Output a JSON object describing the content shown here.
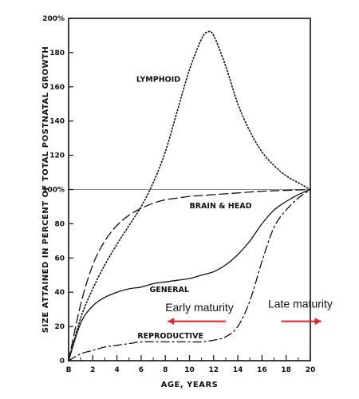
{
  "chart_data": {
    "type": "line",
    "xlabel": "AGE, YEARS",
    "ylabel": "SIZE ATTAINED IN PERCENT OF TOTAL POSTNATAL GROWTH",
    "xlim": [
      0,
      20
    ],
    "ylim": [
      0,
      200
    ],
    "x_ticks": [
      "B",
      "2",
      "4",
      "6",
      "8",
      "10",
      "12",
      "14",
      "16",
      "18",
      "20"
    ],
    "y_ticks": [
      "0",
      "20",
      "40",
      "60",
      "80",
      "100%",
      "120",
      "140",
      "160",
      "180",
      "200%"
    ],
    "reference_line": {
      "y": 100,
      "style": "solid-thin-gray"
    },
    "series": [
      {
        "name": "LYMPHOID",
        "style": "dotted",
        "x": [
          0,
          1,
          2,
          3,
          4,
          5,
          6,
          7,
          8,
          9,
          10,
          11,
          11.5,
          12,
          13,
          14,
          15,
          16,
          17,
          18,
          19,
          20
        ],
        "y": [
          0,
          25,
          42,
          56,
          68,
          79,
          90,
          104,
          122,
          146,
          170,
          188,
          192,
          190,
          172,
          150,
          134,
          122,
          114,
          108,
          104,
          100
        ]
      },
      {
        "name": "BRAIN & HEAD",
        "style": "dashed",
        "x": [
          0,
          1,
          2,
          3,
          4,
          5,
          6,
          7,
          8,
          9,
          10,
          12,
          14,
          16,
          18,
          20
        ],
        "y": [
          0,
          33,
          56,
          70,
          79,
          85,
          89,
          92,
          94,
          95,
          96,
          97,
          98,
          99,
          99.5,
          100
        ]
      },
      {
        "name": "GENERAL",
        "style": "solid",
        "x": [
          0,
          1,
          2,
          3,
          4,
          5,
          6,
          7,
          8,
          9,
          10,
          11,
          12,
          13,
          14,
          15,
          16,
          17,
          18,
          19,
          20
        ],
        "y": [
          0,
          22,
          32,
          37,
          40,
          42,
          43,
          45,
          46,
          47,
          48,
          50,
          52,
          56,
          62,
          70,
          80,
          88,
          93,
          97,
          100
        ]
      },
      {
        "name": "REPRODUCTIVE",
        "style": "dash-dot",
        "x": [
          0,
          1,
          2,
          3,
          4,
          5,
          6,
          7,
          8,
          9,
          10,
          11,
          12,
          13,
          14,
          15,
          16,
          17,
          18,
          19,
          20
        ],
        "y": [
          0,
          4,
          6,
          8,
          9,
          10,
          11,
          11,
          11,
          11,
          11,
          11,
          12,
          14,
          20,
          35,
          58,
          78,
          88,
          95,
          100
        ]
      }
    ],
    "annotations": [
      {
        "text": "Early maturity",
        "arrow": "left",
        "arrow_color": "#e0282e"
      },
      {
        "text": "Late maturity",
        "arrow": "right",
        "arrow_color": "#e0282e"
      }
    ]
  }
}
